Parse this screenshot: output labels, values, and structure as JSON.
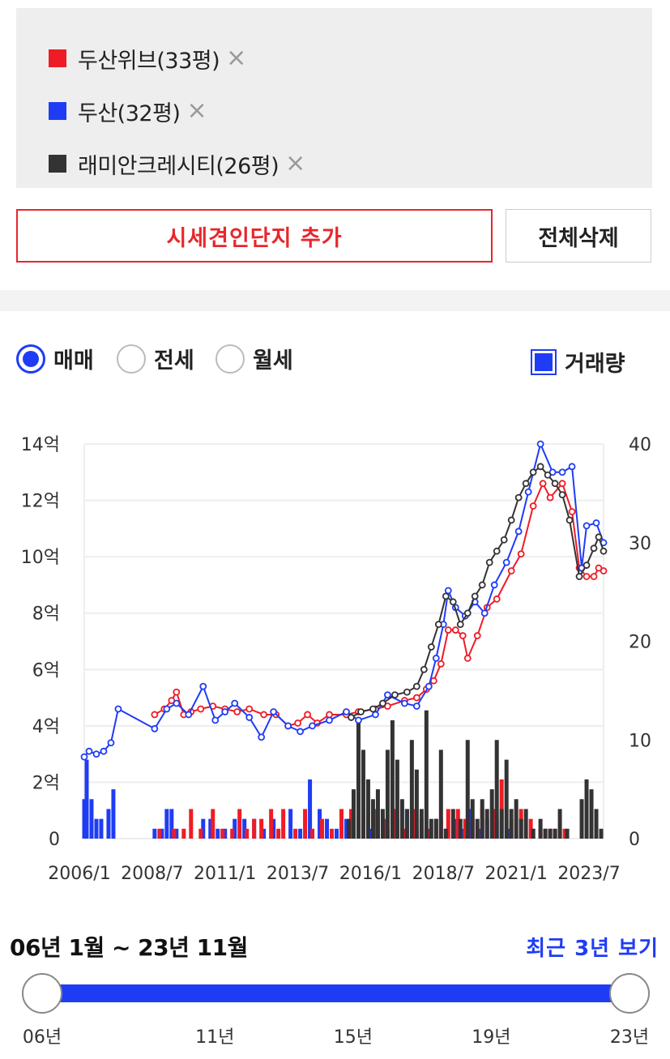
{
  "complexes": [
    {
      "label": "두산위브(33평)",
      "color": "#ee1c25"
    },
    {
      "label": "두산(32평)",
      "color": "#1f3cf5"
    },
    {
      "label": "래미안크레시티(26평)",
      "color": "#333333"
    }
  ],
  "remove_icon": "×",
  "buttons": {
    "add": "시세견인단지 추가",
    "clear": "전체삭제"
  },
  "radios": [
    {
      "label": "매매",
      "checked": true
    },
    {
      "label": "전세",
      "checked": false
    },
    {
      "label": "월세",
      "checked": false
    }
  ],
  "volume_toggle": {
    "label": "거래량",
    "checked": true
  },
  "range": {
    "text": "06년 1월 ~ 23년 11월",
    "recent_link": "최근 3년 보기",
    "start": 0.0,
    "end": 1.0
  },
  "slider_ticks": [
    "06년",
    "11년",
    "15년",
    "19년",
    "23년"
  ],
  "chart_data": {
    "type": "line",
    "x_ticks": [
      "2006/1",
      "2008/7",
      "2011/1",
      "2013/7",
      "2016/1",
      "2018/7",
      "2021/1",
      "2023/7"
    ],
    "y_left_ticks": [
      "0",
      "2억",
      "4억",
      "6억",
      "8억",
      "10억",
      "12억",
      "14억"
    ],
    "y_right_ticks": [
      "0",
      "10",
      "20",
      "30",
      "40"
    ],
    "ylim_price": [
      0,
      14
    ],
    "ylim_volume": [
      0,
      40
    ],
    "x_range": [
      "2006/1",
      "2023/11"
    ],
    "grid": true,
    "series": [
      {
        "name": "두산위브(33평)",
        "color": "#ee1c25",
        "price": [
          [
            "2008/6",
            4.4
          ],
          [
            "2008/10",
            4.6
          ],
          [
            "2009/1",
            4.9
          ],
          [
            "2009/3",
            5.2
          ],
          [
            "2009/6",
            4.4
          ],
          [
            "2009/9",
            4.5
          ],
          [
            "2010/1",
            4.6
          ],
          [
            "2010/6",
            4.7
          ],
          [
            "2010/11",
            4.6
          ],
          [
            "2011/4",
            4.5
          ],
          [
            "2011/9",
            4.6
          ],
          [
            "2012/3",
            4.4
          ],
          [
            "2012/8",
            4.4
          ],
          [
            "2013/1",
            4.0
          ],
          [
            "2013/5",
            4.1
          ],
          [
            "2013/9",
            4.4
          ],
          [
            "2014/1",
            4.1
          ],
          [
            "2014/6",
            4.4
          ],
          [
            "2015/1",
            4.4
          ],
          [
            "2015/6",
            4.5
          ],
          [
            "2016/1",
            4.6
          ],
          [
            "2016/6",
            4.7
          ],
          [
            "2017/1",
            4.9
          ],
          [
            "2017/6",
            5.0
          ],
          [
            "2017/10",
            5.3
          ],
          [
            "2018/1",
            5.6
          ],
          [
            "2018/4",
            6.2
          ],
          [
            "2018/7",
            7.4
          ],
          [
            "2018/10",
            7.4
          ],
          [
            "2019/1",
            7.2
          ],
          [
            "2019/3",
            6.4
          ],
          [
            "2019/7",
            7.2
          ],
          [
            "2019/11",
            8.2
          ],
          [
            "2020/3",
            8.5
          ],
          [
            "2020/9",
            9.5
          ],
          [
            "2021/1",
            10.1
          ],
          [
            "2021/6",
            11.8
          ],
          [
            "2021/10",
            12.6
          ],
          [
            "2022/1",
            12.1
          ],
          [
            "2022/6",
            12.6
          ],
          [
            "2022/10",
            11.6
          ],
          [
            "2023/1",
            9.6
          ],
          [
            "2023/4",
            9.3
          ],
          [
            "2023/7",
            9.3
          ],
          [
            "2023/9",
            9.6
          ],
          [
            "2023/11",
            9.5
          ]
        ]
      },
      {
        "name": "두산(32평)",
        "color": "#1f3cf5",
        "price": [
          [
            "2006/1",
            2.9
          ],
          [
            "2006/3",
            3.1
          ],
          [
            "2006/6",
            3.0
          ],
          [
            "2006/9",
            3.1
          ],
          [
            "2006/12",
            3.4
          ],
          [
            "2007/3",
            4.6
          ],
          [
            "2008/6",
            3.9
          ],
          [
            "2008/11",
            4.6
          ],
          [
            "2009/3",
            4.8
          ],
          [
            "2009/8",
            4.4
          ],
          [
            "2010/2",
            5.4
          ],
          [
            "2010/7",
            4.2
          ],
          [
            "2010/11",
            4.5
          ],
          [
            "2011/3",
            4.8
          ],
          [
            "2011/9",
            4.3
          ],
          [
            "2012/2",
            3.6
          ],
          [
            "2012/7",
            4.5
          ],
          [
            "2013/1",
            4.0
          ],
          [
            "2013/6",
            3.8
          ],
          [
            "2013/11",
            4.0
          ],
          [
            "2014/6",
            4.2
          ],
          [
            "2015/1",
            4.5
          ],
          [
            "2015/6",
            4.2
          ],
          [
            "2016/1",
            4.4
          ],
          [
            "2016/6",
            5.1
          ],
          [
            "2017/1",
            4.8
          ],
          [
            "2017/6",
            4.7
          ],
          [
            "2017/11",
            5.4
          ],
          [
            "2018/2",
            6.4
          ],
          [
            "2018/5",
            7.6
          ],
          [
            "2018/7",
            8.8
          ],
          [
            "2018/10",
            8.2
          ],
          [
            "2019/2",
            7.9
          ],
          [
            "2019/6",
            8.4
          ],
          [
            "2019/10",
            8.0
          ],
          [
            "2020/2",
            9.0
          ],
          [
            "2020/7",
            9.8
          ],
          [
            "2020/12",
            10.9
          ],
          [
            "2021/4",
            12.3
          ],
          [
            "2021/9",
            14.0
          ],
          [
            "2022/2",
            13.0
          ],
          [
            "2022/6",
            13.0
          ],
          [
            "2022/10",
            13.2
          ],
          [
            "2023/2",
            9.6
          ],
          [
            "2023/4",
            11.1
          ],
          [
            "2023/8",
            11.2
          ],
          [
            "2023/11",
            10.5
          ]
        ]
      },
      {
        "name": "래미안크레시티(26평)",
        "color": "#333333",
        "price": [
          [
            "2015/3",
            4.3
          ],
          [
            "2015/7",
            4.5
          ],
          [
            "2015/12",
            4.6
          ],
          [
            "2016/4",
            4.8
          ],
          [
            "2016/9",
            5.1
          ],
          [
            "2017/2",
            5.2
          ],
          [
            "2017/6",
            5.4
          ],
          [
            "2017/9",
            6.0
          ],
          [
            "2017/12",
            6.8
          ],
          [
            "2018/3",
            7.6
          ],
          [
            "2018/6",
            8.6
          ],
          [
            "2018/9",
            8.4
          ],
          [
            "2018/12",
            7.6
          ],
          [
            "2019/3",
            8.0
          ],
          [
            "2019/6",
            8.6
          ],
          [
            "2019/9",
            9.0
          ],
          [
            "2019/12",
            9.8
          ],
          [
            "2020/3",
            10.2
          ],
          [
            "2020/6",
            10.6
          ],
          [
            "2020/9",
            11.3
          ],
          [
            "2020/12",
            12.1
          ],
          [
            "2021/3",
            12.6
          ],
          [
            "2021/6",
            13.0
          ],
          [
            "2021/9",
            13.2
          ],
          [
            "2021/12",
            12.9
          ],
          [
            "2022/3",
            12.6
          ],
          [
            "2022/6",
            12.2
          ],
          [
            "2022/9",
            11.3
          ],
          [
            "2023/1",
            9.3
          ],
          [
            "2023/4",
            9.7
          ],
          [
            "2023/7",
            10.3
          ],
          [
            "2023/9",
            10.7
          ],
          [
            "2023/11",
            10.2
          ]
        ]
      }
    ],
    "volume": [
      {
        "name": "두산(32평)",
        "color": "#1f3cf5",
        "points": [
          [
            "2006/1",
            4
          ],
          [
            "2006/2",
            8
          ],
          [
            "2006/4",
            4
          ],
          [
            "2006/6",
            2
          ],
          [
            "2006/8",
            2
          ],
          [
            "2006/11",
            3
          ],
          [
            "2007/1",
            5
          ],
          [
            "2008/6",
            1
          ],
          [
            "2008/9",
            1
          ],
          [
            "2008/11",
            3
          ],
          [
            "2009/1",
            3
          ],
          [
            "2009/3",
            1
          ],
          [
            "2010/2",
            2
          ],
          [
            "2010/5",
            2
          ],
          [
            "2010/8",
            1
          ],
          [
            "2010/11",
            1
          ],
          [
            "2011/3",
            2
          ],
          [
            "2011/7",
            2
          ],
          [
            "2011/11",
            2
          ],
          [
            "2012/3",
            1
          ],
          [
            "2012/7",
            2
          ],
          [
            "2013/2",
            3
          ],
          [
            "2013/6",
            1
          ],
          [
            "2013/10",
            6
          ],
          [
            "2014/2",
            3
          ],
          [
            "2014/5",
            2
          ],
          [
            "2014/9",
            1
          ],
          [
            "2015/1",
            2
          ],
          [
            "2015/4",
            2
          ],
          [
            "2015/8",
            1
          ],
          [
            "2015/11",
            1
          ],
          [
            "2016/2",
            3
          ],
          [
            "2016/6",
            1
          ],
          [
            "2016/10",
            2
          ],
          [
            "2017/2",
            3
          ],
          [
            "2017/6",
            1
          ],
          [
            "2017/10",
            1
          ],
          [
            "2018/2",
            2
          ],
          [
            "2018/6",
            1
          ],
          [
            "2018/10",
            2
          ],
          [
            "2019/1",
            1
          ],
          [
            "2019/4",
            3
          ],
          [
            "2019/8",
            1
          ],
          [
            "2019/11",
            2
          ],
          [
            "2020/3",
            2
          ],
          [
            "2020/8",
            1
          ],
          [
            "2021/1",
            2
          ],
          [
            "2021/6",
            1
          ],
          [
            "2021/11",
            1
          ],
          [
            "2022/5",
            1
          ]
        ]
      },
      {
        "name": "두산위브(33평)",
        "color": "#ee1c25",
        "points": [
          [
            "2008/8",
            1
          ],
          [
            "2009/2",
            1
          ],
          [
            "2009/6",
            1
          ],
          [
            "2009/9",
            3
          ],
          [
            "2010/1",
            1
          ],
          [
            "2010/6",
            3
          ],
          [
            "2010/10",
            1
          ],
          [
            "2011/2",
            1
          ],
          [
            "2011/5",
            3
          ],
          [
            "2011/8",
            1
          ],
          [
            "2011/11",
            2
          ],
          [
            "2012/2",
            2
          ],
          [
            "2012/6",
            3
          ],
          [
            "2012/9",
            1
          ],
          [
            "2012/11",
            3
          ],
          [
            "2013/4",
            1
          ],
          [
            "2013/8",
            3
          ],
          [
            "2013/11",
            1
          ],
          [
            "2014/3",
            2
          ],
          [
            "2014/7",
            1
          ],
          [
            "2014/11",
            3
          ],
          [
            "2015/3",
            3
          ],
          [
            "2015/8",
            3
          ],
          [
            "2016/1",
            3
          ],
          [
            "2016/5",
            2
          ],
          [
            "2016/9",
            3
          ],
          [
            "2017/1",
            1
          ],
          [
            "2017/5",
            3
          ],
          [
            "2017/8",
            2
          ],
          [
            "2017/11",
            1
          ],
          [
            "2018/4",
            2
          ],
          [
            "2018/7",
            3
          ],
          [
            "2018/11",
            3
          ],
          [
            "2019/2",
            2
          ],
          [
            "2019/5",
            2
          ],
          [
            "2019/9",
            3
          ],
          [
            "2020/2",
            3
          ],
          [
            "2020/5",
            6
          ],
          [
            "2020/9",
            2
          ],
          [
            "2021/1",
            3
          ],
          [
            "2021/5",
            2
          ],
          [
            "2021/9",
            1
          ],
          [
            "2022/1",
            1
          ],
          [
            "2022/3",
            1
          ],
          [
            "2022/7",
            1
          ]
        ]
      },
      {
        "name": "래미안크레시티(26평)",
        "color": "#333333",
        "points": [
          [
            "2015/2",
            2
          ],
          [
            "2015/4",
            5
          ],
          [
            "2015/6",
            12
          ],
          [
            "2015/8",
            9
          ],
          [
            "2015/10",
            6
          ],
          [
            "2015/12",
            4
          ],
          [
            "2016/2",
            5
          ],
          [
            "2016/4",
            3
          ],
          [
            "2016/6",
            9
          ],
          [
            "2016/8",
            12
          ],
          [
            "2016/10",
            8
          ],
          [
            "2016/12",
            4
          ],
          [
            "2017/2",
            3
          ],
          [
            "2017/4",
            10
          ],
          [
            "2017/6",
            7
          ],
          [
            "2017/8",
            3
          ],
          [
            "2017/10",
            13
          ],
          [
            "2017/12",
            2
          ],
          [
            "2018/2",
            2
          ],
          [
            "2018/4",
            9
          ],
          [
            "2018/6",
            1
          ],
          [
            "2018/9",
            3
          ],
          [
            "2018/12",
            2
          ],
          [
            "2019/3",
            10
          ],
          [
            "2019/5",
            4
          ],
          [
            "2019/7",
            2
          ],
          [
            "2019/9",
            4
          ],
          [
            "2019/11",
            3
          ],
          [
            "2020/1",
            5
          ],
          [
            "2020/3",
            10
          ],
          [
            "2020/5",
            3
          ],
          [
            "2020/7",
            8
          ],
          [
            "2020/9",
            3
          ],
          [
            "2020/11",
            4
          ],
          [
            "2021/1",
            2
          ],
          [
            "2021/3",
            3
          ],
          [
            "2021/6",
            1
          ],
          [
            "2021/9",
            2
          ],
          [
            "2021/11",
            1
          ],
          [
            "2022/1",
            1
          ],
          [
            "2022/3",
            1
          ],
          [
            "2022/5",
            3
          ],
          [
            "2022/8",
            1
          ],
          [
            "2023/2",
            4
          ],
          [
            "2023/4",
            6
          ],
          [
            "2023/6",
            5
          ],
          [
            "2023/8",
            3
          ],
          [
            "2023/10",
            1
          ]
        ]
      }
    ]
  }
}
